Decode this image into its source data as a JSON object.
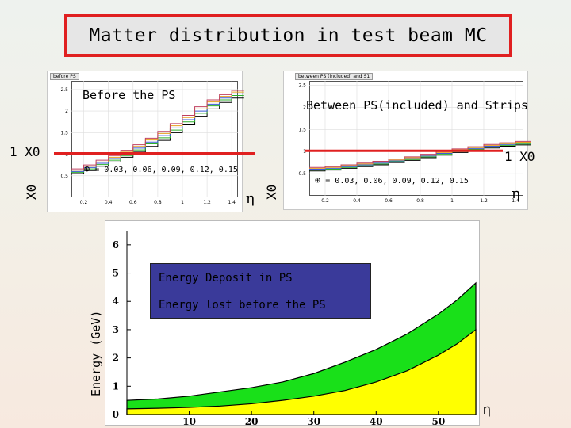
{
  "title": "Matter distribution in test beam MC",
  "chart_data": [
    {
      "type": "line",
      "title": "Before the PS",
      "tab_label": "before PS",
      "ylabel": "X0",
      "xlabel": "η",
      "xlim": [
        0.1,
        1.45
      ],
      "ylim": [
        0,
        2.7
      ],
      "x_ticks": [
        "0.2",
        "0.4",
        "0.6",
        "0.8",
        "1",
        "1.2",
        "1.4"
      ],
      "y_ticks": [
        "0.5",
        "1",
        "1.5",
        "2",
        "2.5"
      ],
      "phi_note": "= 0.03, 0.06, 0.09, 0.12, 0.15",
      "reference_line": {
        "label": "1 X0",
        "y": 1.0,
        "color": "#e02020"
      },
      "series": [
        {
          "color": "#000000",
          "x": [
            0.1,
            0.2,
            0.3,
            0.4,
            0.5,
            0.6,
            0.7,
            0.8,
            0.9,
            1.0,
            1.1,
            1.2,
            1.3,
            1.4
          ],
          "y": [
            0.55,
            0.62,
            0.72,
            0.82,
            0.93,
            1.05,
            1.18,
            1.32,
            1.5,
            1.68,
            1.88,
            2.05,
            2.2,
            2.3
          ]
        },
        {
          "color": "#2bb02b",
          "x": [
            0.1,
            0.2,
            0.3,
            0.4,
            0.5,
            0.6,
            0.7,
            0.8,
            0.9,
            1.0,
            1.1,
            1.2,
            1.3,
            1.4
          ],
          "y": [
            0.58,
            0.66,
            0.76,
            0.86,
            0.97,
            1.1,
            1.24,
            1.38,
            1.56,
            1.75,
            1.95,
            2.12,
            2.26,
            2.36
          ]
        },
        {
          "color": "#3b5bd6",
          "x": [
            0.1,
            0.2,
            0.3,
            0.4,
            0.5,
            0.6,
            0.7,
            0.8,
            0.9,
            1.0,
            1.1,
            1.2,
            1.3,
            1.4
          ],
          "y": [
            0.6,
            0.69,
            0.79,
            0.9,
            1.01,
            1.14,
            1.28,
            1.43,
            1.61,
            1.8,
            2.0,
            2.16,
            2.3,
            2.4
          ]
        },
        {
          "color": "#e8a020",
          "x": [
            0.1,
            0.2,
            0.3,
            0.4,
            0.5,
            0.6,
            0.7,
            0.8,
            0.9,
            1.0,
            1.1,
            1.2,
            1.3,
            1.4
          ],
          "y": [
            0.63,
            0.72,
            0.82,
            0.93,
            1.05,
            1.18,
            1.33,
            1.48,
            1.66,
            1.85,
            2.05,
            2.21,
            2.34,
            2.44
          ]
        },
        {
          "color": "#c04060",
          "x": [
            0.1,
            0.2,
            0.3,
            0.4,
            0.5,
            0.6,
            0.7,
            0.8,
            0.9,
            1.0,
            1.1,
            1.2,
            1.3,
            1.4
          ],
          "y": [
            0.66,
            0.75,
            0.86,
            0.97,
            1.09,
            1.22,
            1.37,
            1.53,
            1.71,
            1.9,
            2.1,
            2.26,
            2.38,
            2.48
          ]
        }
      ]
    },
    {
      "type": "line",
      "title": "Between PS(included) and Strips",
      "tab_label": "between PS (included) and S1",
      "ylabel": "X0",
      "xlabel": "η",
      "xlim": [
        0.1,
        1.45
      ],
      "ylim": [
        0,
        2.6
      ],
      "x_ticks": [
        "0.2",
        "0.4",
        "0.6",
        "0.8",
        "1",
        "1.2",
        "1.4"
      ],
      "y_ticks": [
        "0.5",
        "1",
        "1.5",
        "2",
        "2.5"
      ],
      "phi_note": "= 0.03, 0.06, 0.09, 0.12, 0.15",
      "reference_line": {
        "label": "1 X0",
        "y": 1.0,
        "color": "#e02020"
      },
      "series": [
        {
          "color": "#000000",
          "x": [
            0.1,
            0.2,
            0.3,
            0.4,
            0.5,
            0.6,
            0.7,
            0.8,
            0.9,
            1.0,
            1.1,
            1.2,
            1.3,
            1.4
          ],
          "y": [
            0.56,
            0.58,
            0.62,
            0.66,
            0.7,
            0.75,
            0.8,
            0.86,
            0.92,
            0.98,
            1.03,
            1.08,
            1.12,
            1.15
          ]
        },
        {
          "color": "#2bb02b",
          "x": [
            0.1,
            0.2,
            0.3,
            0.4,
            0.5,
            0.6,
            0.7,
            0.8,
            0.9,
            1.0,
            1.1,
            1.2,
            1.3,
            1.4
          ],
          "y": [
            0.58,
            0.6,
            0.64,
            0.68,
            0.72,
            0.77,
            0.82,
            0.88,
            0.94,
            1.0,
            1.05,
            1.1,
            1.14,
            1.17
          ]
        },
        {
          "color": "#3b5bd6",
          "x": [
            0.1,
            0.2,
            0.3,
            0.4,
            0.5,
            0.6,
            0.7,
            0.8,
            0.9,
            1.0,
            1.1,
            1.2,
            1.3,
            1.4
          ],
          "y": [
            0.6,
            0.62,
            0.66,
            0.7,
            0.74,
            0.79,
            0.84,
            0.9,
            0.96,
            1.02,
            1.07,
            1.12,
            1.16,
            1.19
          ]
        },
        {
          "color": "#e8a020",
          "x": [
            0.1,
            0.2,
            0.3,
            0.4,
            0.5,
            0.6,
            0.7,
            0.8,
            0.9,
            1.0,
            1.1,
            1.2,
            1.3,
            1.4
          ],
          "y": [
            0.62,
            0.64,
            0.68,
            0.72,
            0.76,
            0.81,
            0.86,
            0.92,
            0.98,
            1.04,
            1.09,
            1.14,
            1.18,
            1.21
          ]
        },
        {
          "color": "#c04060",
          "x": [
            0.1,
            0.2,
            0.3,
            0.4,
            0.5,
            0.6,
            0.7,
            0.8,
            0.9,
            1.0,
            1.1,
            1.2,
            1.3,
            1.4
          ],
          "y": [
            0.64,
            0.66,
            0.7,
            0.74,
            0.78,
            0.83,
            0.88,
            0.94,
            1.0,
            1.06,
            1.11,
            1.16,
            1.2,
            1.23
          ]
        }
      ]
    },
    {
      "type": "area",
      "ylabel": "Energy (GeV)",
      "xlabel": "η",
      "xlim": [
        0,
        56
      ],
      "ylim": [
        0,
        6.5
      ],
      "x_ticks": [
        "10",
        "20",
        "30",
        "40",
        "50"
      ],
      "x_tick_values": [
        10,
        20,
        30,
        40,
        50
      ],
      "y_ticks": [
        "0",
        "1",
        "2",
        "3",
        "4",
        "5",
        "6"
      ],
      "legend": [
        "Energy Deposit in PS",
        "Energy lost before the PS"
      ],
      "series": [
        {
          "name": "Energy Deposit in PS",
          "color": "#19e019",
          "x": [
            0,
            5,
            10,
            15,
            20,
            25,
            30,
            35,
            40,
            45,
            50,
            53,
            56
          ],
          "y": [
            0.5,
            0.55,
            0.65,
            0.8,
            0.95,
            1.15,
            1.45,
            1.85,
            2.3,
            2.85,
            3.55,
            4.05,
            4.65
          ]
        },
        {
          "name": "Energy lost before the PS",
          "color": "#ffff00",
          "x": [
            0,
            5,
            10,
            15,
            20,
            25,
            30,
            35,
            40,
            45,
            50,
            53,
            56
          ],
          "y": [
            0.2,
            0.22,
            0.25,
            0.3,
            0.38,
            0.5,
            0.65,
            0.85,
            1.15,
            1.55,
            2.1,
            2.5,
            3.0
          ]
        }
      ]
    }
  ]
}
